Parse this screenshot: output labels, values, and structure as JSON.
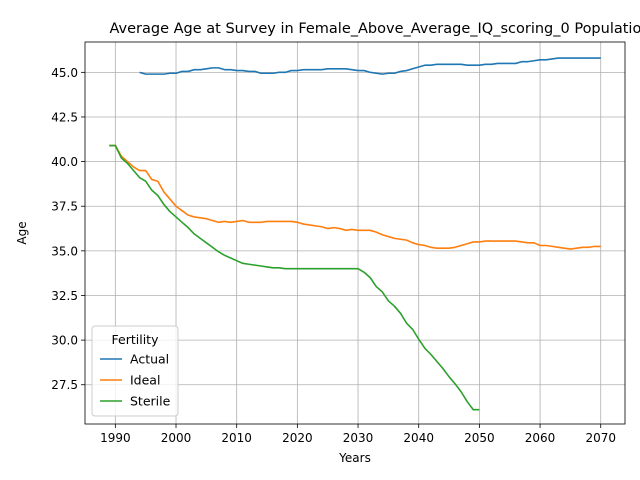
{
  "chart_data": {
    "type": "line",
    "title": "Average Age at Survey in Female_Above_Average_IQ_scoring_0 Population",
    "xlabel": "Years",
    "ylabel": "Age",
    "xlim": [
      1985,
      2074
    ],
    "ylim": [
      25.3,
      46.7
    ],
    "xticks": [
      1990,
      2000,
      2010,
      2020,
      2030,
      2040,
      2050,
      2060,
      2070
    ],
    "yticks": [
      27.5,
      30.0,
      32.5,
      35.0,
      37.5,
      40.0,
      42.5,
      45.0
    ],
    "xtick_labels": [
      "1990",
      "2000",
      "2010",
      "2020",
      "2030",
      "2040",
      "2050",
      "2060",
      "2070"
    ],
    "ytick_labels": [
      "27.5",
      "30.0",
      "32.5",
      "35.0",
      "37.5",
      "40.0",
      "42.5",
      "45.0"
    ],
    "grid": true,
    "legend": {
      "title": "Fertility",
      "placement": "lower-left"
    },
    "series": [
      {
        "name": "Actual",
        "color": "#1f77b4",
        "x": [
          1994,
          1995,
          1996,
          1997,
          1998,
          1999,
          2000,
          2001,
          2002,
          2003,
          2004,
          2005,
          2006,
          2007,
          2008,
          2009,
          2010,
          2011,
          2012,
          2013,
          2014,
          2015,
          2016,
          2017,
          2018,
          2019,
          2020,
          2021,
          2022,
          2023,
          2024,
          2025,
          2026,
          2027,
          2028,
          2029,
          2030,
          2031,
          2032,
          2033,
          2034,
          2035,
          2036,
          2037,
          2038,
          2039,
          2040,
          2041,
          2042,
          2043,
          2044,
          2045,
          2046,
          2047,
          2048,
          2049,
          2050,
          2051,
          2052,
          2053,
          2054,
          2055,
          2056,
          2057,
          2058,
          2059,
          2060,
          2061,
          2062,
          2063,
          2064,
          2065,
          2066,
          2067,
          2068,
          2069,
          2070
        ],
        "y": [
          45.0,
          44.9,
          44.9,
          44.9,
          44.9,
          44.95,
          44.95,
          45.05,
          45.05,
          45.15,
          45.15,
          45.2,
          45.25,
          45.25,
          45.15,
          45.15,
          45.1,
          45.1,
          45.05,
          45.05,
          44.95,
          44.95,
          44.95,
          45.0,
          45.0,
          45.1,
          45.1,
          45.15,
          45.15,
          45.15,
          45.15,
          45.2,
          45.2,
          45.2,
          45.2,
          45.15,
          45.1,
          45.1,
          45.0,
          44.95,
          44.9,
          44.95,
          44.95,
          45.05,
          45.1,
          45.2,
          45.3,
          45.4,
          45.4,
          45.45,
          45.45,
          45.45,
          45.45,
          45.45,
          45.4,
          45.4,
          45.4,
          45.45,
          45.45,
          45.5,
          45.5,
          45.5,
          45.5,
          45.6,
          45.6,
          45.65,
          45.7,
          45.7,
          45.75,
          45.8,
          45.8,
          45.8,
          45.8,
          45.8,
          45.8,
          45.8,
          45.8
        ]
      },
      {
        "name": "Ideal",
        "color": "#ff7f0e",
        "x": [
          1989,
          1990,
          1991,
          1992,
          1993,
          1994,
          1995,
          1996,
          1997,
          1998,
          1999,
          2000,
          2001,
          2002,
          2003,
          2004,
          2005,
          2006,
          2007,
          2008,
          2009,
          2010,
          2011,
          2012,
          2013,
          2014,
          2015,
          2016,
          2017,
          2018,
          2019,
          2020,
          2021,
          2022,
          2023,
          2024,
          2025,
          2026,
          2027,
          2028,
          2029,
          2030,
          2031,
          2032,
          2033,
          2034,
          2035,
          2036,
          2037,
          2038,
          2039,
          2040,
          2041,
          2042,
          2043,
          2044,
          2045,
          2046,
          2047,
          2048,
          2049,
          2050,
          2051,
          2052,
          2053,
          2054,
          2055,
          2056,
          2057,
          2058,
          2059,
          2060,
          2061,
          2062,
          2063,
          2064,
          2065,
          2066,
          2067,
          2068,
          2069,
          2070
        ],
        "y": [
          40.9,
          40.9,
          40.3,
          40.0,
          39.7,
          39.5,
          39.5,
          39.0,
          38.9,
          38.3,
          37.9,
          37.5,
          37.25,
          37.0,
          36.9,
          36.85,
          36.8,
          36.7,
          36.6,
          36.65,
          36.6,
          36.65,
          36.7,
          36.6,
          36.6,
          36.6,
          36.65,
          36.65,
          36.65,
          36.65,
          36.65,
          36.6,
          36.5,
          36.45,
          36.4,
          36.35,
          36.25,
          36.3,
          36.25,
          36.15,
          36.2,
          36.15,
          36.15,
          36.15,
          36.05,
          35.9,
          35.8,
          35.7,
          35.65,
          35.6,
          35.45,
          35.35,
          35.3,
          35.2,
          35.15,
          35.15,
          35.15,
          35.2,
          35.3,
          35.4,
          35.5,
          35.5,
          35.55,
          35.55,
          35.55,
          35.55,
          35.55,
          35.55,
          35.5,
          35.45,
          35.45,
          35.3,
          35.3,
          35.25,
          35.2,
          35.15,
          35.1,
          35.15,
          35.2,
          35.2,
          35.25,
          35.25
        ]
      },
      {
        "name": "Sterile",
        "color": "#2ca02c",
        "x": [
          1989,
          1990,
          1991,
          1992,
          1993,
          1994,
          1995,
          1996,
          1997,
          1998,
          1999,
          2000,
          2001,
          2002,
          2003,
          2004,
          2005,
          2006,
          2007,
          2008,
          2009,
          2010,
          2011,
          2012,
          2013,
          2014,
          2015,
          2016,
          2017,
          2018,
          2019,
          2020,
          2021,
          2022,
          2023,
          2024,
          2025,
          2026,
          2027,
          2028,
          2029,
          2030,
          2031,
          2032,
          2033,
          2034,
          2035,
          2036,
          2037,
          2038,
          2039,
          2040,
          2041,
          2042,
          2043,
          2044,
          2045,
          2046,
          2047,
          2048,
          2049,
          2050
        ],
        "y": [
          40.9,
          40.9,
          40.2,
          39.9,
          39.5,
          39.1,
          38.9,
          38.4,
          38.1,
          37.6,
          37.2,
          36.9,
          36.6,
          36.3,
          35.95,
          35.7,
          35.45,
          35.2,
          34.95,
          34.75,
          34.6,
          34.45,
          34.3,
          34.25,
          34.2,
          34.15,
          34.1,
          34.05,
          34.05,
          34.0,
          34.0,
          34.0,
          34.0,
          34.0,
          34.0,
          34.0,
          34.0,
          34.0,
          34.0,
          34.0,
          34.0,
          34.0,
          33.8,
          33.5,
          33.0,
          32.7,
          32.2,
          31.9,
          31.5,
          30.95,
          30.6,
          30.05,
          29.55,
          29.2,
          28.8,
          28.4,
          27.95,
          27.55,
          27.1,
          26.55,
          26.1,
          26.1
        ]
      }
    ]
  }
}
